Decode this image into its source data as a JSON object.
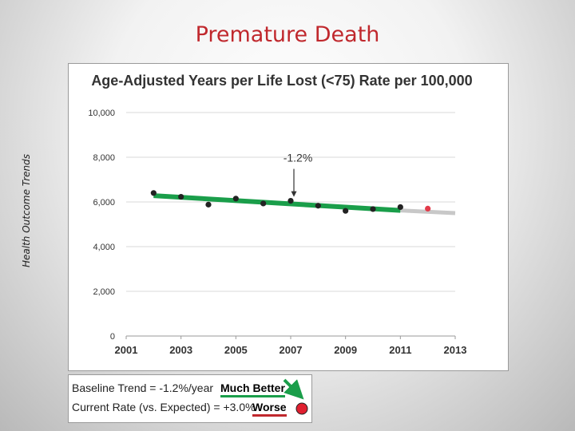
{
  "slide": {
    "title": "Premature Death",
    "side_label": "Health Outcome Trends"
  },
  "chart_data": {
    "type": "line",
    "title": "Age-Adjusted Years per Life Lost (<75) Rate per 100,000",
    "xlim": [
      2001,
      2013
    ],
    "ylim": [
      0,
      10000
    ],
    "x_ticks": [
      "2001",
      "2003",
      "2005",
      "2007",
      "2009",
      "2011",
      "2013"
    ],
    "y_ticks": [
      "0",
      "2,000",
      "4,000",
      "6,000",
      "8,000",
      "10,000"
    ],
    "points": [
      {
        "x": 2002,
        "y": 6400
      },
      {
        "x": 2003,
        "y": 6230
      },
      {
        "x": 2004,
        "y": 5880
      },
      {
        "x": 2005,
        "y": 6150
      },
      {
        "x": 2006,
        "y": 5930
      },
      {
        "x": 2007,
        "y": 6050
      },
      {
        "x": 2008,
        "y": 5830
      },
      {
        "x": 2009,
        "y": 5600
      },
      {
        "x": 2010,
        "y": 5680
      },
      {
        "x": 2011,
        "y": 5770
      }
    ],
    "current_point": {
      "x": 2012,
      "y": 5700,
      "color": "#e23b4a"
    },
    "trend_line": {
      "x": [
        2002,
        2011
      ],
      "y": [
        6280,
        5620
      ],
      "color": "#1a9e4a"
    },
    "expected_line": {
      "x": [
        2011,
        2013
      ],
      "y": [
        5620,
        5500
      ],
      "color": "#c8c8c8"
    },
    "annotation": {
      "text": "-1.2%",
      "x": 2007,
      "y": 6050
    }
  },
  "legend": {
    "baseline_label": "Baseline Trend = -1.2%/year",
    "baseline_rating": "Much Better",
    "current_label": "Current Rate (vs. Expected) = +3.0%",
    "current_rating": "Worse",
    "colors": {
      "better": "#1a9e4a",
      "worse": "#c0282d",
      "dot": "#e02030"
    }
  }
}
